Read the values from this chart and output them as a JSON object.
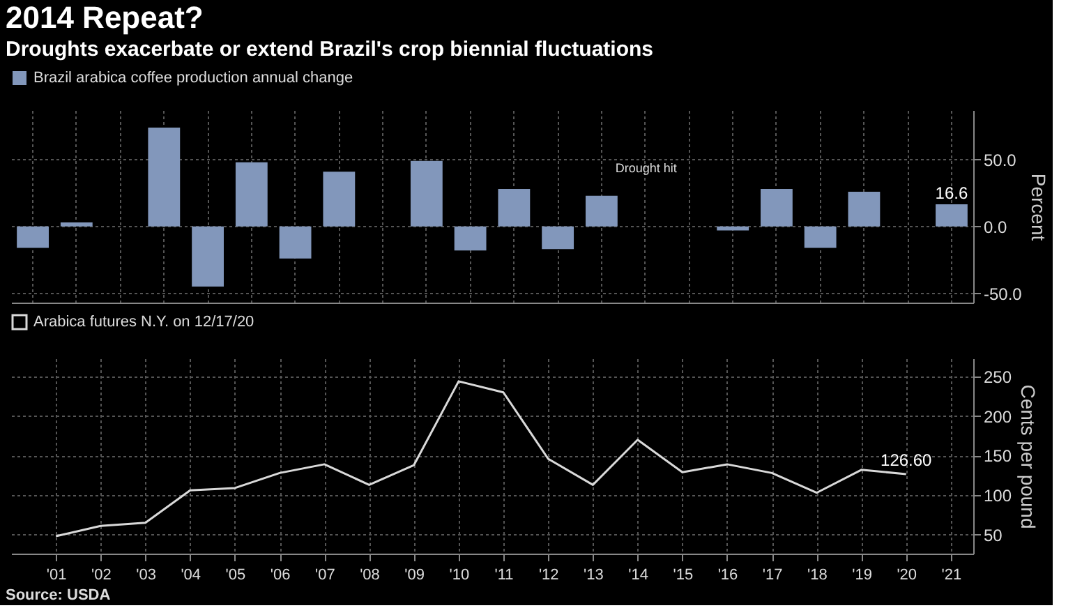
{
  "chart_data": [
    {
      "type": "bar",
      "title": "2014 Repeat?",
      "subtitle": "Droughts exacerbate or extend Brazil's crop biennial fluctuations",
      "ylabel": "Percent",
      "categories": [
        null,
        null,
        null,
        null,
        null,
        null,
        null,
        null,
        null,
        null,
        null,
        null,
        null,
        null,
        null,
        null,
        null,
        null,
        null,
        null,
        null,
        null
      ],
      "series": [
        {
          "name": "Brazil arabica coffee production annual change",
          "color": "#8297bb",
          "values": [
            -16,
            3,
            null,
            74,
            -45,
            48,
            -24,
            41,
            null,
            49,
            -18,
            28,
            -17,
            23,
            null,
            null,
            -3,
            28,
            -16,
            26,
            null,
            16.6
          ],
          "value_labels": [
            null,
            null,
            null,
            null,
            null,
            null,
            null,
            null,
            null,
            null,
            null,
            null,
            null,
            null,
            null,
            null,
            null,
            null,
            null,
            null,
            null,
            "16.6"
          ]
        }
      ],
      "ylim": [
        -57,
        87
      ],
      "yticks": [
        {
          "value": -50,
          "label": "-50.0"
        },
        {
          "value": 0,
          "label": "0.0"
        },
        {
          "value": 50,
          "label": "50.0"
        }
      ],
      "annotations": [
        "Drought hit"
      ],
      "grid": true,
      "legend": "top left",
      "tick_labels": "y"
    },
    {
      "type": "line",
      "ylabel": "Cents per pound",
      "x": [
        2001,
        2002,
        2003,
        2004,
        2005,
        2006,
        2007,
        2008,
        2009,
        2010,
        2011,
        2012,
        2013,
        2014,
        2015,
        2016,
        2017,
        2018,
        2019,
        2020
      ],
      "series": [
        {
          "name": "Arabica futures N.Y. on 12/17/20",
          "color": "#d9d9d9",
          "values": [
            48,
            61,
            65,
            106,
            109,
            128,
            139,
            113,
            138,
            244,
            230,
            146,
            113,
            170,
            129,
            139,
            128,
            103,
            132,
            126.6
          ],
          "value_labels": [
            null,
            null,
            null,
            null,
            null,
            null,
            null,
            null,
            null,
            null,
            null,
            null,
            null,
            null,
            null,
            null,
            null,
            null,
            null,
            "126.60"
          ]
        }
      ],
      "xlim": [
        2000,
        2021.5
      ],
      "xticks": [
        {
          "value": 2001,
          "label": "'01"
        },
        {
          "value": 2002,
          "label": "'02"
        },
        {
          "value": 2003,
          "label": "'03"
        },
        {
          "value": 2004,
          "label": "'04"
        },
        {
          "value": 2005,
          "label": "'05"
        },
        {
          "value": 2006,
          "label": "'06"
        },
        {
          "value": 2007,
          "label": "'07"
        },
        {
          "value": 2008,
          "label": "'08"
        },
        {
          "value": 2009,
          "label": "'09"
        },
        {
          "value": 2010,
          "label": "'10"
        },
        {
          "value": 2011,
          "label": "'11"
        },
        {
          "value": 2012,
          "label": "'12"
        },
        {
          "value": 2013,
          "label": "'13"
        },
        {
          "value": 2014,
          "label": "'14"
        },
        {
          "value": 2015,
          "label": "'15"
        },
        {
          "value": 2016,
          "label": "'16"
        },
        {
          "value": 2017,
          "label": "'17"
        },
        {
          "value": 2018,
          "label": "'18"
        },
        {
          "value": 2019,
          "label": "'19"
        },
        {
          "value": 2020,
          "label": "'20"
        },
        {
          "value": 2021,
          "label": "'21"
        }
      ],
      "ylim": [
        26,
        273
      ],
      "yticks": [
        50,
        100,
        150,
        200,
        250
      ],
      "annotations": [
        "Source: USDA"
      ],
      "grid": true,
      "legend": "top left",
      "marker": "none",
      "line_style": "solid"
    }
  ]
}
